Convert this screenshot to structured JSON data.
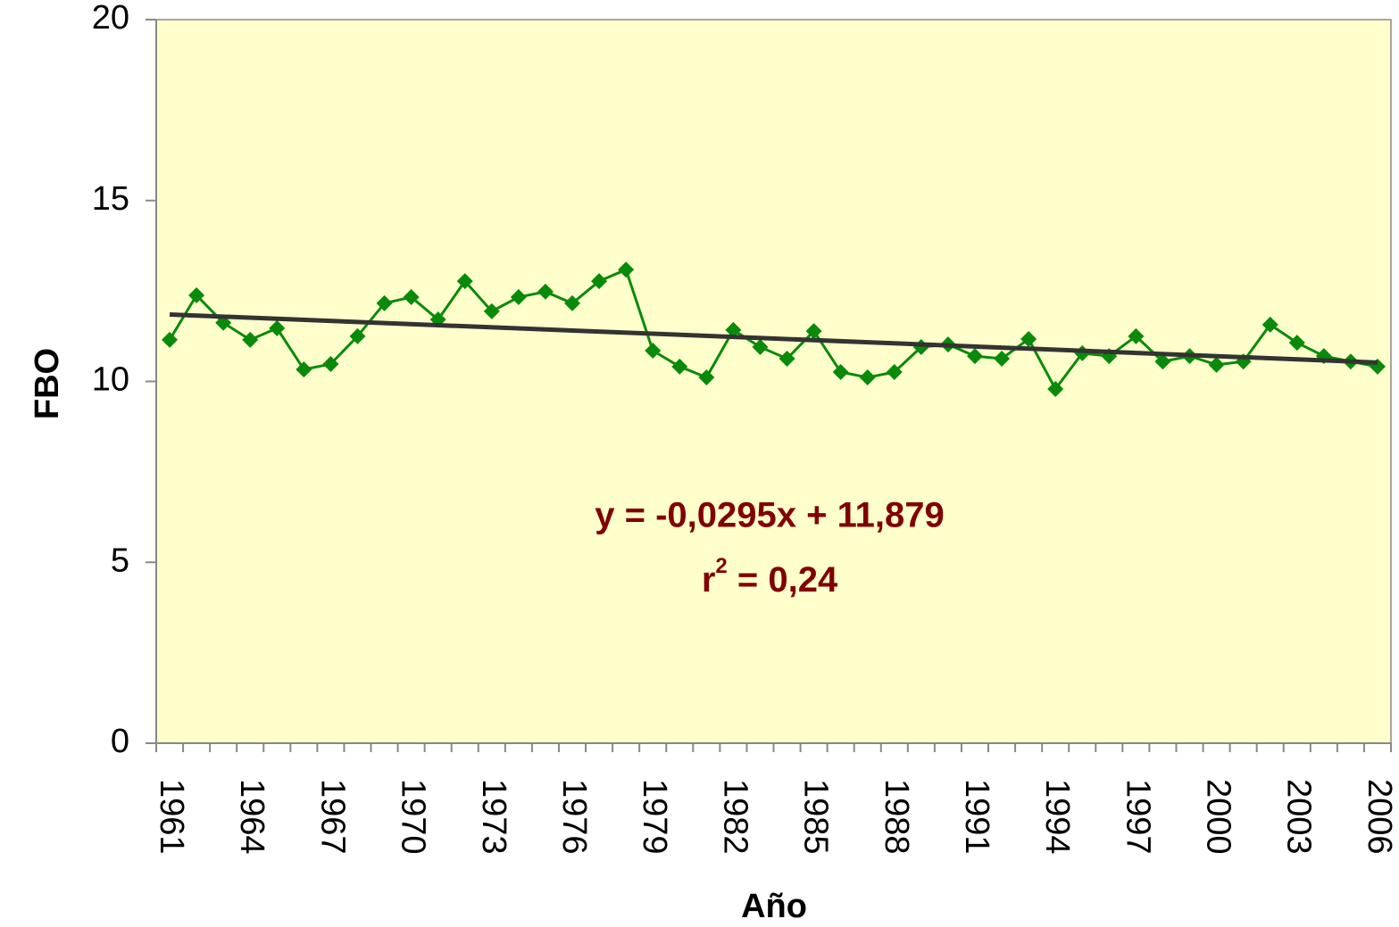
{
  "chart_data": {
    "type": "line",
    "x_label": "Año",
    "y_label": "FBO",
    "categories": [
      "1961",
      null,
      null,
      "1964",
      null,
      null,
      "1967",
      null,
      null,
      "1970",
      null,
      null,
      "1973",
      null,
      null,
      "1976",
      null,
      null,
      "1979",
      null,
      null,
      "1982",
      null,
      null,
      "1985",
      null,
      null,
      "1988",
      null,
      null,
      "1991",
      null,
      null,
      "1994",
      null,
      null,
      "1997",
      null,
      null,
      "2000",
      null,
      null,
      "2003",
      null,
      null,
      "2006"
    ],
    "series": [
      {
        "color": "#0a8a0a",
        "values": [
          11.15,
          12.38,
          11.62,
          11.15,
          11.47,
          10.33,
          10.48,
          11.25,
          12.16,
          12.33,
          11.71,
          12.77,
          11.94,
          12.33,
          12.48,
          12.16,
          12.77,
          13.09,
          10.85,
          10.41,
          10.11,
          11.42,
          10.95,
          10.63,
          11.39,
          10.26,
          10.11,
          10.26,
          10.95,
          11.02,
          10.7,
          10.63,
          11.17,
          9.79,
          10.78,
          10.7,
          11.25,
          10.55,
          10.7,
          10.46,
          10.55,
          11.57,
          11.07,
          10.7,
          10.55,
          10.41
        ]
      }
    ],
    "trendline": {
      "slope": -0.0295,
      "intercept": 11.879,
      "color": "#333333",
      "label": "y = -0,0295x + 11,879",
      "r2_label": {
        "base": "r",
        "sup": "2",
        "rest": " = 0,24"
      }
    },
    "annotation_color": "#800000",
    "plot_background": "#ffffcc",
    "ylim": [
      0,
      20
    ],
    "yticks": [
      0,
      5,
      10,
      15,
      20
    ]
  }
}
